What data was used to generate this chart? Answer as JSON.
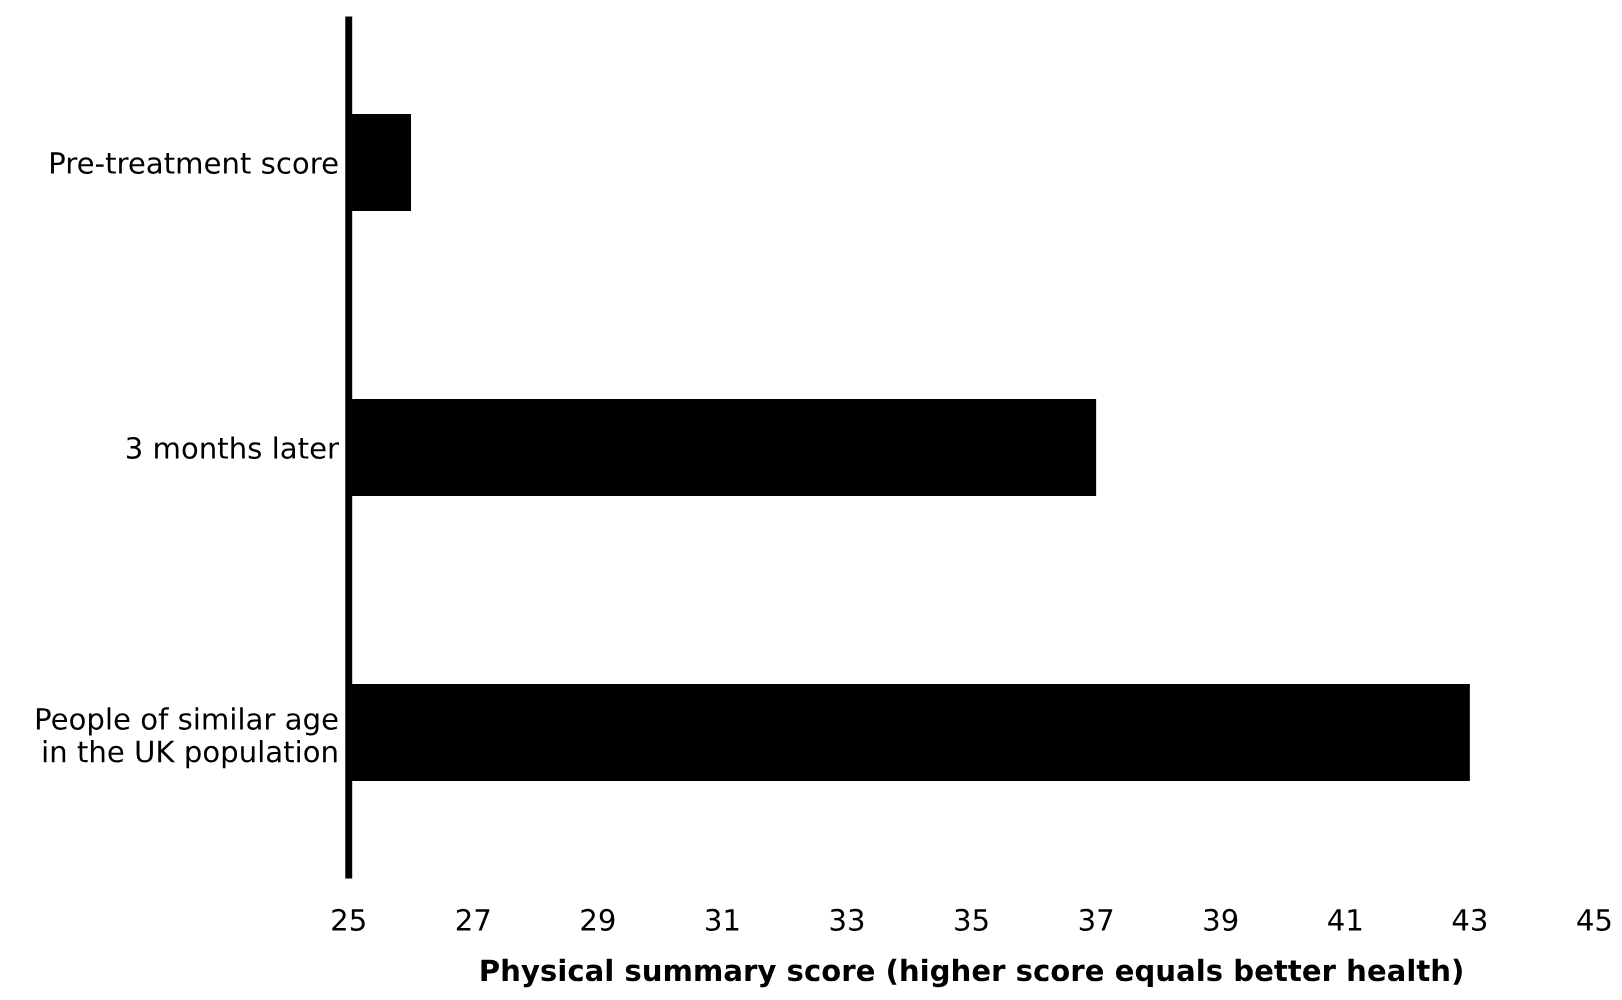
{
  "chart_data": {
    "type": "bar",
    "orientation": "horizontal",
    "categories": [
      "Pre-treatment score",
      "3 months later",
      "People of similar age\nin the UK population"
    ],
    "values": [
      26,
      37,
      43
    ],
    "color": "#000000",
    "xlim": [
      25,
      45
    ],
    "xticks": [
      25,
      27,
      29,
      31,
      33,
      35,
      37,
      39,
      41,
      43,
      45
    ],
    "xlabel": "Physical summary score (higher score equals better health)",
    "grid": false,
    "legend": false
  }
}
